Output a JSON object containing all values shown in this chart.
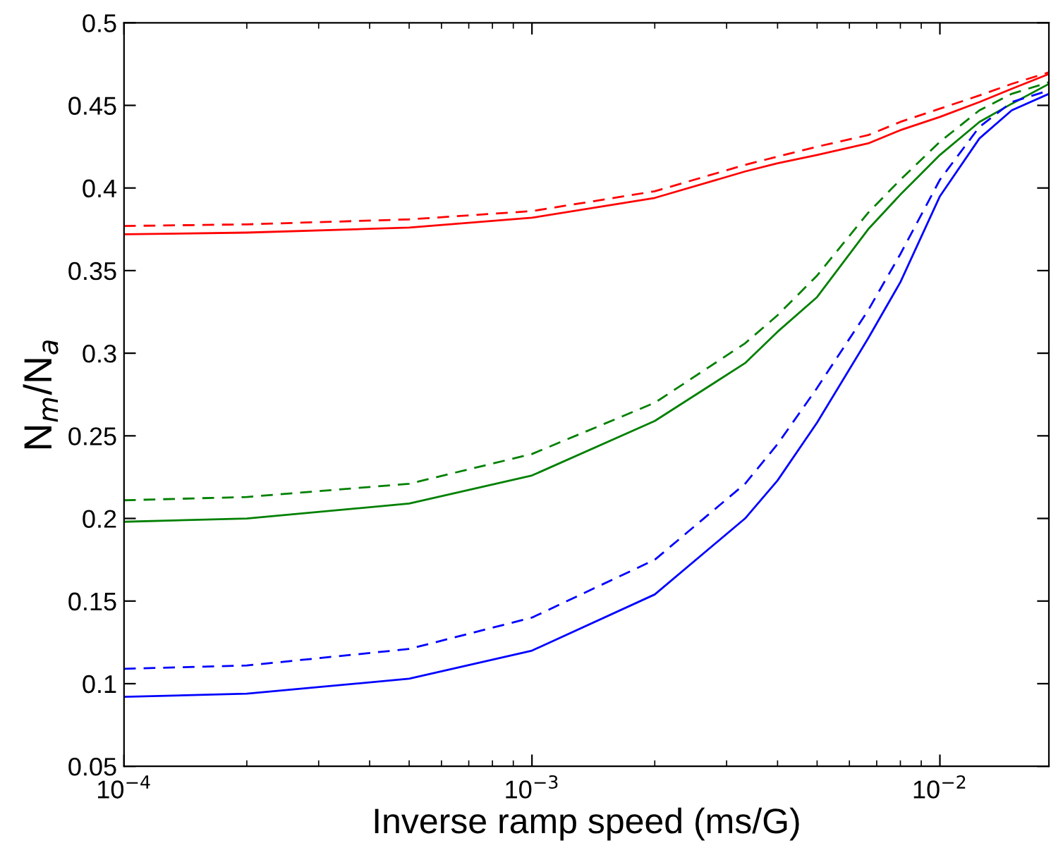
{
  "chart_data": {
    "type": "line",
    "xlabel": "Inverse ramp speed (ms/G)",
    "ylabel": "N$_{m}$/N$_{a}$",
    "log": "x",
    "x": [
      0.0001,
      0.0002,
      0.0005,
      0.001,
      0.002,
      0.00333,
      0.004,
      0.005,
      0.00667,
      0.008,
      0.01,
      0.0125,
      0.015,
      0.0185
    ],
    "series": [
      {
        "color": "#ff0000",
        "line_style": "solid",
        "values": [
          0.372,
          0.373,
          0.376,
          0.382,
          0.394,
          0.41,
          0.415,
          0.42,
          0.427,
          0.435,
          0.443,
          0.452,
          0.46,
          0.469
        ]
      },
      {
        "color": "#ff0000",
        "line_style": "dashed",
        "values": [
          0.377,
          0.378,
          0.381,
          0.386,
          0.398,
          0.414,
          0.419,
          0.425,
          0.432,
          0.44,
          0.448,
          0.456,
          0.463,
          0.47
        ]
      },
      {
        "color": "#008000",
        "line_style": "solid",
        "values": [
          0.198,
          0.2,
          0.209,
          0.226,
          0.259,
          0.294,
          0.313,
          0.334,
          0.375,
          0.396,
          0.42,
          0.44,
          0.451,
          0.463
        ]
      },
      {
        "color": "#008000",
        "line_style": "dashed",
        "values": [
          0.211,
          0.213,
          0.221,
          0.239,
          0.27,
          0.306,
          0.323,
          0.347,
          0.385,
          0.405,
          0.428,
          0.447,
          0.457,
          0.464
        ]
      },
      {
        "color": "#0000ff",
        "line_style": "solid",
        "values": [
          0.092,
          0.094,
          0.103,
          0.12,
          0.154,
          0.2,
          0.223,
          0.258,
          0.309,
          0.343,
          0.395,
          0.43,
          0.447,
          0.457
        ]
      },
      {
        "color": "#0000ff",
        "line_style": "dashed",
        "values": [
          0.109,
          0.111,
          0.121,
          0.14,
          0.175,
          0.221,
          0.245,
          0.279,
          0.326,
          0.36,
          0.405,
          0.437,
          0.452,
          0.459
        ]
      }
    ],
    "xlim": [
      0.0001,
      0.0185
    ],
    "xticks": [
      {
        "value": 0.0001,
        "label": "10$^{−4}$"
      },
      {
        "value": 0.001,
        "label": "10$^{−3}$"
      },
      {
        "value": 0.01,
        "label": "10$^{−2}$"
      }
    ],
    "ylim": [
      0.05,
      0.5
    ],
    "yticks": [
      0.05,
      0.1,
      0.15,
      0.2,
      0.25,
      0.3,
      0.35,
      0.4,
      0.45,
      0.5
    ],
    "grid": false,
    "legend": false,
    "marker": "none"
  }
}
